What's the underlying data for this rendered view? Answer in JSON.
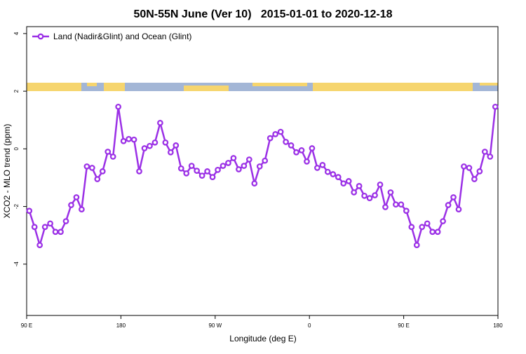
{
  "chart_data": {
    "type": "line",
    "title": "50N-55N June (Ver 10)   2015-01-01 to 2020-12-18",
    "x_label": "Longitude (deg E)",
    "y_label": "XCO2 - MLO trend (ppm)",
    "x": [
      92.5,
      97.5,
      102.5,
      107.5,
      112.5,
      117.5,
      122.5,
      127.5,
      132.5,
      137.5,
      142.5,
      147.5,
      152.5,
      157.5,
      162.5,
      167.5,
      172.5,
      177.5,
      182.5,
      187.5,
      192.5,
      197.5,
      202.5,
      207.5,
      212.5,
      217.5,
      222.5,
      227.5,
      232.5,
      237.5,
      242.5,
      247.5,
      252.5,
      257.5,
      262.5,
      267.5,
      272.5,
      277.5,
      282.5,
      287.5,
      292.5,
      297.5,
      302.5,
      307.5,
      312.5,
      317.5,
      322.5,
      327.5,
      332.5,
      337.5,
      342.5,
      347.5,
      352.5,
      357.5,
      362.5,
      367.5,
      372.5,
      377.5,
      382.5,
      387.5,
      392.5,
      397.5,
      402.5,
      407.5,
      412.5,
      417.5,
      422.5,
      427.5,
      432.5,
      437.5,
      442.5,
      447.5,
      452.5,
      457.5,
      462.5,
      467.5,
      472.5,
      477.5,
      482.5,
      487.5,
      492.5,
      497.5,
      502.5,
      507.5,
      512.5,
      517.5,
      522.5,
      527.5,
      532.5,
      537.5
    ],
    "series": [
      {
        "name": "Land (Nadir&Glint) and Ocean (Glint)",
        "color": "#9b30e6",
        "values": [
          -2.15,
          -2.71,
          -3.34,
          -2.71,
          -2.59,
          -2.88,
          -2.88,
          -2.51,
          -1.95,
          -1.68,
          -2.1,
          -0.61,
          -0.66,
          -1.05,
          -0.78,
          -0.1,
          -0.27,
          1.46,
          0.27,
          0.34,
          0.32,
          -0.78,
          0.02,
          0.1,
          0.22,
          0.9,
          0.22,
          -0.12,
          0.12,
          -0.68,
          -0.85,
          -0.59,
          -0.76,
          -0.93,
          -0.78,
          -0.98,
          -0.73,
          -0.59,
          -0.49,
          -0.32,
          -0.71,
          -0.59,
          -0.37,
          -1.2,
          -0.61,
          -0.41,
          0.37,
          0.51,
          0.59,
          0.24,
          0.12,
          -0.12,
          -0.05,
          -0.44,
          0.02,
          -0.66,
          -0.56,
          -0.8,
          -0.88,
          -0.98,
          -1.2,
          -1.12,
          -1.51,
          -1.29,
          -1.63,
          -1.71,
          -1.61,
          -1.24,
          -2.02,
          -1.51,
          -1.93,
          -1.93,
          -2.15,
          -2.71,
          -3.34,
          -2.71,
          -2.59,
          -2.88,
          -2.88,
          -2.51,
          -1.95,
          -1.68,
          -2.1,
          -0.61,
          -0.66,
          -1.05,
          -0.78,
          -0.1,
          -0.27,
          1.46
        ]
      }
    ],
    "xlim": [
      90,
      540
    ],
    "xticks": [
      {
        "value": 90,
        "label": "90 E"
      },
      {
        "value": 180,
        "label": "180"
      },
      {
        "value": 270,
        "label": "90 W"
      },
      {
        "value": 360,
        "label": "0"
      },
      {
        "value": 450,
        "label": "90 E"
      },
      {
        "value": 540,
        "label": "180"
      }
    ],
    "ylim": [
      -5.78,
      4.24
    ],
    "yticks": [
      -4,
      -2,
      0,
      2,
      4
    ],
    "legend": "top-left"
  }
}
